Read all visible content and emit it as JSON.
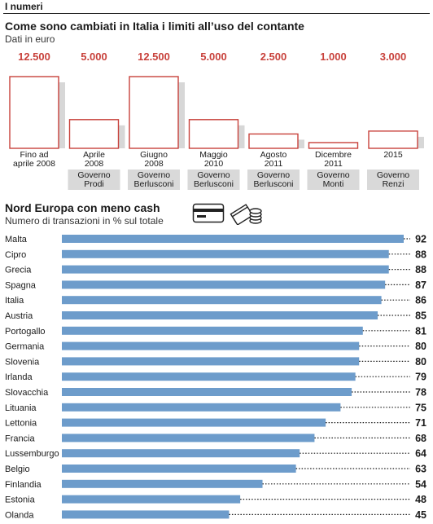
{
  "header": {
    "section": "I numeri"
  },
  "chart_data": [
    {
      "type": "bar",
      "title": "Come sono cambiati in Italia i limiti all’uso del contante",
      "subtitle": "Dati in euro",
      "categories": [
        [
          "Fino ad",
          "aprile 2008"
        ],
        [
          "Aprile",
          "2008"
        ],
        [
          "Giugno",
          "2008"
        ],
        [
          "Maggio",
          "2010"
        ],
        [
          "Agosto",
          "2011"
        ],
        [
          "Dicembre",
          "2011"
        ],
        [
          "2015"
        ]
      ],
      "values": [
        12500,
        5000,
        12500,
        5000,
        2500,
        1000,
        3000
      ],
      "value_labels": [
        "12.500",
        "5.000",
        "12.500",
        "5.000",
        "2.500",
        "1.000",
        "3.000"
      ],
      "governments": [
        null,
        [
          "Governo",
          "Prodi"
        ],
        [
          "Governo",
          "Berlusconi"
        ],
        [
          "Governo",
          "Berlusconi"
        ],
        [
          "Governo",
          "Berlusconi"
        ],
        [
          "Governo",
          "Monti"
        ],
        [
          "Governo",
          "Renzi"
        ]
      ],
      "ylim": [
        0,
        12500
      ],
      "colors": {
        "bar_edge": "#c8413b",
        "bar_fill": "#ffffff",
        "shadow": "#d7d7d7",
        "value": "#c8413b",
        "gov_box": "#d9d9d9"
      }
    },
    {
      "type": "bar",
      "orientation": "horizontal",
      "title": "Nord Europa con meno cash",
      "subtitle": "Numero di transazioni in % sul totale",
      "categories": [
        "Malta",
        "Cipro",
        "Grecia",
        "Spagna",
        "Italia",
        "Austria",
        "Portogallo",
        "Germania",
        "Slovenia",
        "Irlanda",
        "Slovacchia",
        "Lituania",
        "Lettonia",
        "Francia",
        "Lussemburgo",
        "Belgio",
        "Finlandia",
        "Estonia",
        "Olanda"
      ],
      "values": [
        92,
        88,
        88,
        87,
        86,
        85,
        81,
        80,
        80,
        79,
        78,
        75,
        71,
        68,
        64,
        63,
        54,
        48,
        45
      ],
      "xlim": [
        0,
        92
      ],
      "icons": [
        "credit-card-icon",
        "cash-coins-icon"
      ],
      "colors": {
        "bar": "#6d9ccb",
        "label": "#1a1a1a"
      }
    }
  ]
}
